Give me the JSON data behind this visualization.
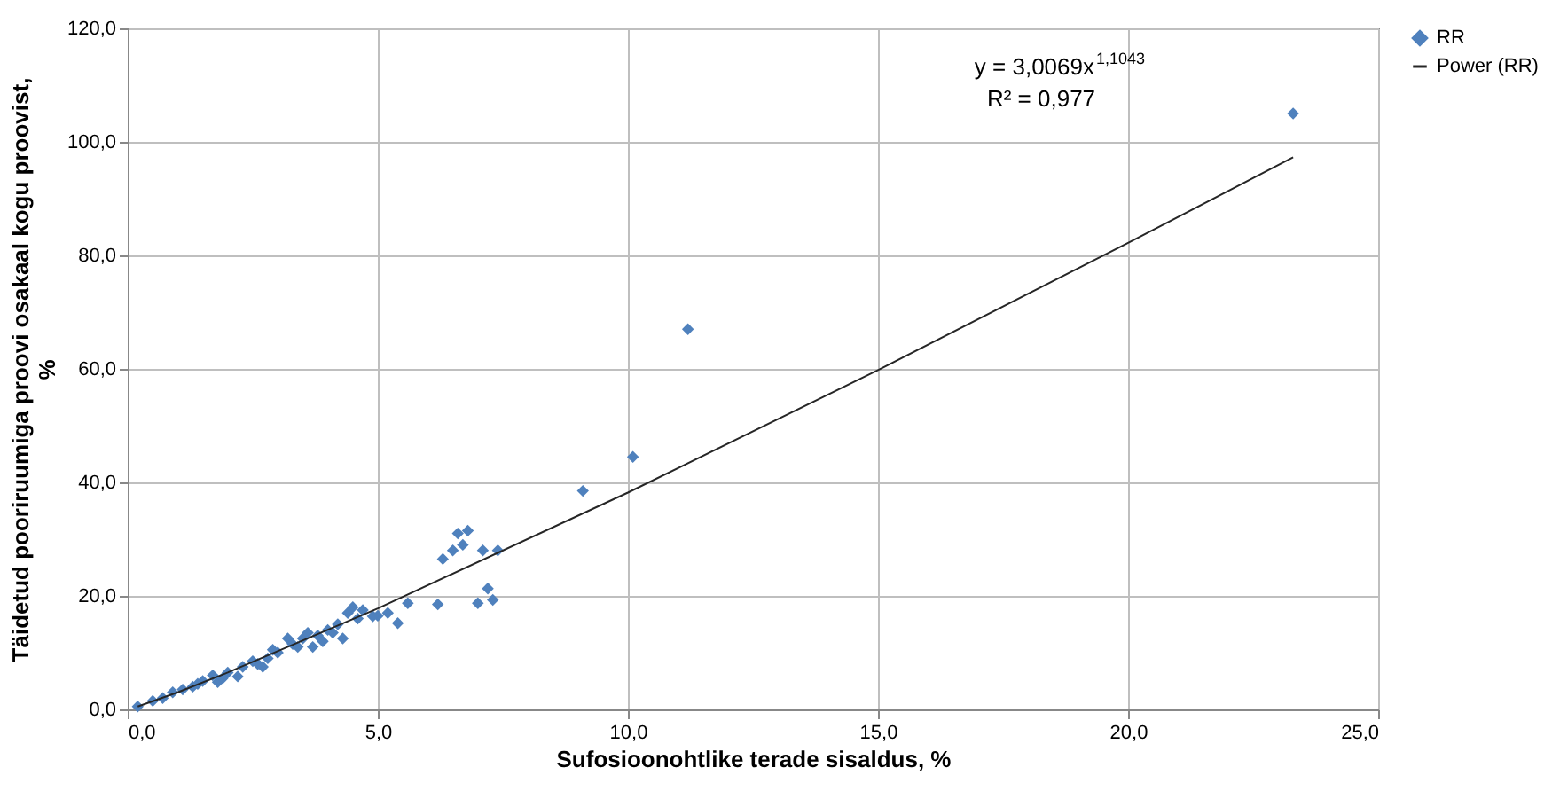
{
  "chart_data": {
    "type": "scatter",
    "xlabel": "Sufosioonohtlike terade sisaldus, %",
    "ylabel": "Täidetud pooriruumiga proovi osakaal kogu proovist, %",
    "annotations": [
      "y = 3,0069x$^{1,1043}$",
      "R² = 0,977"
    ],
    "series": [
      {
        "name": "RR",
        "color": "#4f81bd",
        "x": [
          23.3,
          11.2,
          10.1,
          9.1,
          7.4,
          7.3,
          7.2,
          7.0,
          7.1,
          6.8,
          6.6,
          6.5,
          6.7,
          6.3,
          6.2,
          5.6,
          5.4,
          5.2,
          5.0,
          4.9,
          4.5,
          4.4,
          4.3,
          4.0,
          3.8,
          3.7,
          3.5,
          3.2,
          3.0,
          2.8,
          2.7,
          2.5,
          2.3,
          2.0,
          1.8,
          1.7,
          1.5,
          1.3,
          1.1,
          0.9,
          0.7,
          0.5,
          0.2,
          2.2,
          3.4,
          3.9,
          4.2,
          4.1,
          3.6,
          1.9,
          2.6,
          2.9,
          1.4,
          4.6,
          4.7,
          3.3
        ],
        "values": [
          105,
          67,
          44.5,
          38.5,
          28,
          19.3,
          21.3,
          18.7,
          28,
          31.5,
          31,
          28,
          29,
          26.5,
          18.5,
          18.7,
          15.2,
          17,
          16.5,
          16.4,
          18,
          17,
          12.5,
          14,
          13,
          11,
          12.5,
          12.5,
          10,
          9,
          7.5,
          8.5,
          7.5,
          6.5,
          4.8,
          6,
          5,
          4,
          3.5,
          3,
          2,
          1.5,
          0.5,
          5.8,
          11,
          12,
          15,
          13.5,
          13.5,
          5.5,
          8,
          10.5,
          4.5,
          16,
          17.5,
          11.5
        ]
      },
      {
        "name": "Power (RR)",
        "type": "line",
        "color": "#262626",
        "x": [
          0.2,
          1,
          2,
          5,
          10,
          15,
          20,
          23.3
        ],
        "values": [
          0.5,
          3.0,
          6.5,
          17.8,
          38.2,
          59.8,
          82.2,
          97.3
        ],
        "marker": "none",
        "line_style": "solid"
      }
    ],
    "xlim": [
      0,
      25
    ],
    "ylim": [
      0,
      120
    ],
    "xticks": [
      {
        "value": 0,
        "label": "0,0"
      },
      {
        "value": 5,
        "label": "5,0"
      },
      {
        "value": 10,
        "label": "10,0"
      },
      {
        "value": 15,
        "label": "15,0"
      },
      {
        "value": 20,
        "label": "20,0"
      },
      {
        "value": 25,
        "label": "25,0"
      }
    ],
    "yticks": [
      {
        "value": 0,
        "label": "0,0"
      },
      {
        "value": 20,
        "label": "20,0"
      },
      {
        "value": 40,
        "label": "40,0"
      },
      {
        "value": 60,
        "label": "60,0"
      },
      {
        "value": 80,
        "label": "80,0"
      },
      {
        "value": 100,
        "label": "100,0"
      },
      {
        "value": 120,
        "label": "120,0"
      }
    ],
    "grid": true,
    "legend": "right",
    "marker": "diamond"
  }
}
